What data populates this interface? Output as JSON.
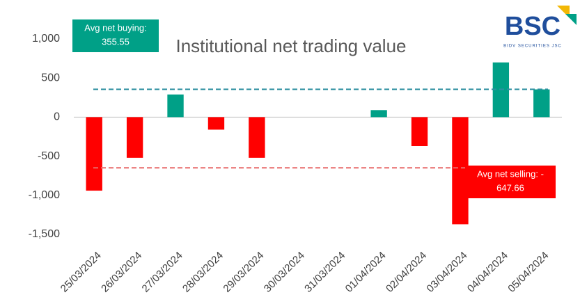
{
  "chart_data": {
    "type": "bar",
    "title": "Institutional net trading value",
    "categories": [
      "25/03/2024",
      "26/03/2024",
      "27/03/2024",
      "28/03/2024",
      "29/03/2024",
      "30/03/2024",
      "31/03/2024",
      "01/04/2024",
      "02/04/2024",
      "03/04/2024",
      "04/04/2024",
      "05/04/2024"
    ],
    "values": [
      -940,
      -520,
      290,
      -160,
      -520,
      null,
      null,
      90,
      -370,
      -1370,
      700,
      355
    ],
    "positive_color": "#00a087",
    "negative_color": "#ff0000",
    "ylim": [
      -1500,
      1000
    ],
    "yticks": [
      {
        "value": -1500,
        "label": "-1,500"
      },
      {
        "value": -1000,
        "label": "-1,000"
      },
      -500,
      0,
      500,
      {
        "value": 1000,
        "label": "1,000"
      }
    ],
    "grid": false,
    "annotations": [
      {
        "text": [
          "Avg net buying:",
          "355.55"
        ],
        "value": 355.55,
        "color": "#00a087",
        "line_color": "#2e8fa0"
      },
      {
        "text": [
          "Avg net selling: -",
          "647.66"
        ],
        "value": -647.66,
        "color": "#ff0000",
        "line_color": "#e86a6a"
      }
    ],
    "logo": {
      "name": "BSC",
      "subtitle": "BIDV SECURITIES JSC"
    }
  }
}
